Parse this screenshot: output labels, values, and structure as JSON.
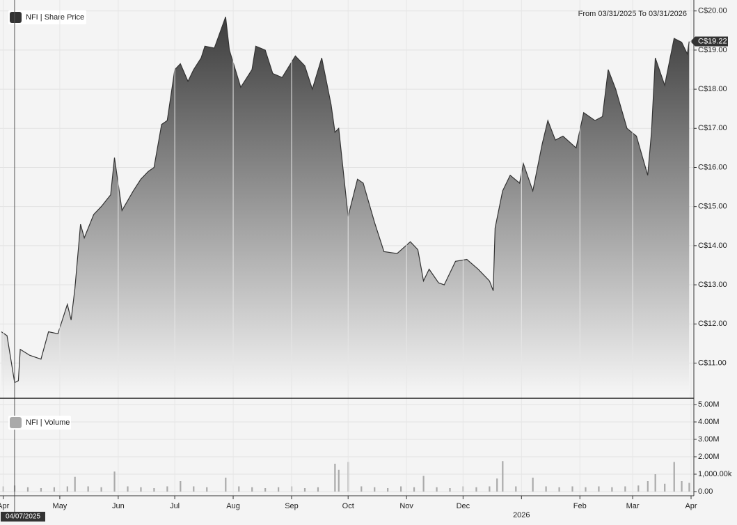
{
  "chart_data": [
    {
      "type": "area",
      "legend": "NFI | Share Price",
      "subtitle": "From 03/31/2025 To 03/31/2026",
      "color": "#333333",
      "x": [
        "2025-03-31",
        "2025-04-03",
        "2025-04-07",
        "2025-04-09",
        "2025-04-10",
        "2025-04-15",
        "2025-04-21",
        "2025-04-25",
        "2025-04-30",
        "2025-05-05",
        "2025-05-07",
        "2025-05-09",
        "2025-05-12",
        "2025-05-14",
        "2025-05-19",
        "2025-05-23",
        "2025-05-28",
        "2025-05-30",
        "2025-06-03",
        "2025-06-09",
        "2025-06-13",
        "2025-06-17",
        "2025-06-20",
        "2025-06-24",
        "2025-06-27",
        "2025-07-01",
        "2025-07-04",
        "2025-07-08",
        "2025-07-11",
        "2025-07-15",
        "2025-07-17",
        "2025-07-22",
        "2025-07-28",
        "2025-07-30",
        "2025-08-05",
        "2025-08-11",
        "2025-08-13",
        "2025-08-18",
        "2025-08-22",
        "2025-08-27",
        "2025-09-03",
        "2025-09-08",
        "2025-09-12",
        "2025-09-17",
        "2025-09-22",
        "2025-09-24",
        "2025-09-26",
        "2025-10-01",
        "2025-10-06",
        "2025-10-09",
        "2025-10-15",
        "2025-10-20",
        "2025-10-27",
        "2025-11-03",
        "2025-11-07",
        "2025-11-10",
        "2025-11-13",
        "2025-11-18",
        "2025-11-21",
        "2025-11-27",
        "2025-12-03",
        "2025-12-09",
        "2025-12-15",
        "2025-12-17",
        "2025-12-18",
        "2025-12-22",
        "2025-12-26",
        "2025-12-31",
        "2026-01-02",
        "2026-01-07",
        "2026-01-12",
        "2026-01-15",
        "2026-01-19",
        "2026-01-23",
        "2026-01-30",
        "2026-02-03",
        "2026-02-09",
        "2026-02-13",
        "2026-02-16",
        "2026-02-20",
        "2026-02-26",
        "2026-03-03",
        "2026-03-09",
        "2026-03-11",
        "2026-03-13",
        "2026-03-18",
        "2026-03-23",
        "2026-03-27",
        "2026-03-30",
        "2026-03-31"
      ],
      "values": [
        11.8,
        11.7,
        10.5,
        10.55,
        11.35,
        11.2,
        11.1,
        11.8,
        11.75,
        12.5,
        12.1,
        12.9,
        14.55,
        14.2,
        14.8,
        15.0,
        15.3,
        16.25,
        14.9,
        15.4,
        15.7,
        15.9,
        16.0,
        17.1,
        17.2,
        18.5,
        18.65,
        18.2,
        18.5,
        18.8,
        19.1,
        19.05,
        19.85,
        19.0,
        18.05,
        18.5,
        19.1,
        19.0,
        18.4,
        18.3,
        18.85,
        18.6,
        18.0,
        18.8,
        17.6,
        16.9,
        17.0,
        14.75,
        15.7,
        15.6,
        14.6,
        13.85,
        13.8,
        14.1,
        13.9,
        13.1,
        13.4,
        13.05,
        13.0,
        13.6,
        13.65,
        13.4,
        13.1,
        12.85,
        14.45,
        15.4,
        15.8,
        15.6,
        16.1,
        15.4,
        16.6,
        17.2,
        16.7,
        16.8,
        16.5,
        17.4,
        17.2,
        17.3,
        18.5,
        18.0,
        17.0,
        16.8,
        15.8,
        16.9,
        18.8,
        18.1,
        19.3,
        19.2,
        18.9,
        19.22
      ],
      "xlim": [
        "2025-03-31",
        "2026-04-01"
      ],
      "ylim": [
        10.1,
        20.28
      ],
      "yticks": [
        {
          "value": 11,
          "label": "C$11.00"
        },
        {
          "value": 12,
          "label": "C$12.00"
        },
        {
          "value": 13,
          "label": "C$13.00"
        },
        {
          "value": 14,
          "label": "C$14.00"
        },
        {
          "value": 15,
          "label": "C$15.00"
        },
        {
          "value": 16,
          "label": "C$16.00"
        },
        {
          "value": 17,
          "label": "C$17.00"
        },
        {
          "value": 18,
          "label": "C$18.00"
        },
        {
          "value": 19,
          "label": "C$19.00"
        },
        {
          "value": 20,
          "label": "C$20.00"
        }
      ],
      "current_price": {
        "value": 19.22,
        "label": "C$19.22"
      },
      "grid": true
    },
    {
      "type": "bar",
      "legend": "NFI | Volume",
      "color": "#aaaaaa",
      "x": [
        "2025-04-01",
        "2025-04-07",
        "2025-04-14",
        "2025-04-21",
        "2025-04-28",
        "2025-05-05",
        "2025-05-09",
        "2025-05-16",
        "2025-05-23",
        "2025-05-30",
        "2025-06-06",
        "2025-06-13",
        "2025-06-20",
        "2025-06-27",
        "2025-07-04",
        "2025-07-11",
        "2025-07-18",
        "2025-07-28",
        "2025-08-04",
        "2025-08-11",
        "2025-08-18",
        "2025-08-25",
        "2025-09-01",
        "2025-09-08",
        "2025-09-15",
        "2025-09-24",
        "2025-09-26",
        "2025-10-01",
        "2025-10-08",
        "2025-10-15",
        "2025-10-22",
        "2025-10-29",
        "2025-11-05",
        "2025-11-10",
        "2025-11-17",
        "2025-11-24",
        "2025-12-01",
        "2025-12-08",
        "2025-12-15",
        "2025-12-19",
        "2025-12-22",
        "2025-12-29",
        "2026-01-07",
        "2026-01-14",
        "2026-01-21",
        "2026-01-28",
        "2026-02-04",
        "2026-02-11",
        "2026-02-18",
        "2026-02-25",
        "2026-03-04",
        "2026-03-09",
        "2026-03-13",
        "2026-03-18",
        "2026-03-23",
        "2026-03-27",
        "2026-03-31"
      ],
      "values": [
        0.3,
        0.35,
        0.25,
        0.2,
        0.25,
        0.3,
        0.85,
        0.3,
        0.25,
        1.15,
        0.3,
        0.25,
        0.2,
        0.3,
        0.6,
        0.3,
        0.25,
        0.8,
        0.3,
        0.25,
        0.2,
        0.25,
        0.3,
        0.2,
        0.25,
        1.6,
        1.25,
        1.7,
        0.3,
        0.25,
        0.2,
        0.3,
        0.25,
        0.9,
        0.25,
        0.2,
        0.3,
        0.25,
        0.3,
        0.75,
        1.75,
        0.3,
        0.8,
        0.3,
        0.25,
        0.3,
        0.25,
        0.3,
        0.25,
        0.3,
        0.35,
        0.6,
        1.0,
        0.45,
        1.7,
        0.6,
        0.5
      ],
      "xlim": [
        "2025-03-31",
        "2026-04-01"
      ],
      "ylim": [
        -0.24,
        5.28
      ],
      "yticks": [
        {
          "value": 0,
          "label": "0.00"
        },
        {
          "value": 1,
          "label": "1,000.00k"
        },
        {
          "value": 2,
          "label": "2.00M"
        },
        {
          "value": 3,
          "label": "3.00M"
        },
        {
          "value": 4,
          "label": "4.00M"
        },
        {
          "value": 5,
          "label": "5.00M"
        }
      ],
      "xticks": [
        {
          "value": "2025-04-01",
          "label": "Apr"
        },
        {
          "value": "2025-05-01",
          "label": "May"
        },
        {
          "value": "2025-06-01",
          "label": "Jun"
        },
        {
          "value": "2025-07-01",
          "label": "Jul"
        },
        {
          "value": "2025-08-01",
          "label": "Aug"
        },
        {
          "value": "2025-09-01",
          "label": "Sep"
        },
        {
          "value": "2025-10-01",
          "label": "Oct"
        },
        {
          "value": "2025-11-01",
          "label": "Nov"
        },
        {
          "value": "2025-12-01",
          "label": "Dec"
        },
        {
          "value": "2026-01-01",
          "label": "2026"
        },
        {
          "value": "2026-02-01",
          "label": "Feb"
        },
        {
          "value": "2026-03-01",
          "label": "Mar"
        },
        {
          "value": "2026-04-01",
          "label": "Apr"
        }
      ],
      "crosshair": {
        "x": "2025-04-07",
        "label": "04/07/2025"
      },
      "grid": true
    }
  ]
}
